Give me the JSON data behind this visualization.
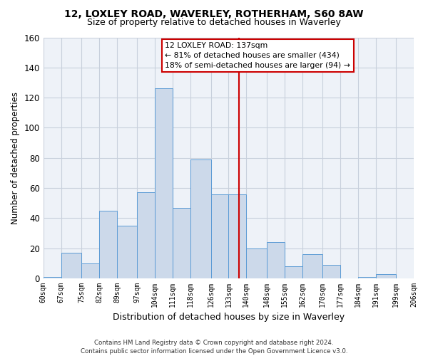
{
  "title_line1": "12, LOXLEY ROAD, WAVERLEY, ROTHERHAM, S60 8AW",
  "title_line2": "Size of property relative to detached houses in Waverley",
  "xlabel": "Distribution of detached houses by size in Waverley",
  "ylabel": "Number of detached properties",
  "footer_line1": "Contains HM Land Registry data © Crown copyright and database right 2024.",
  "footer_line2": "Contains public sector information licensed under the Open Government Licence v3.0.",
  "annotation_title": "12 LOXLEY ROAD: 137sqm",
  "annotation_line1": "← 81% of detached houses are smaller (434)",
  "annotation_line2": "18% of semi-detached houses are larger (94) →",
  "property_size": 137,
  "bin_edges": [
    60,
    67,
    75,
    82,
    89,
    97,
    104,
    111,
    118,
    126,
    133,
    140,
    148,
    155,
    162,
    170,
    177,
    184,
    191,
    199,
    206
  ],
  "bar_heights": [
    1,
    17,
    10,
    45,
    35,
    57,
    126,
    47,
    79,
    56,
    56,
    20,
    24,
    8,
    16,
    9,
    0,
    1,
    3,
    0
  ],
  "bar_color": "#ccd9ea",
  "bar_edge_color": "#5b9bd5",
  "vline_color": "#cc0000",
  "vline_x": 137,
  "ylim": [
    0,
    160
  ],
  "yticks": [
    0,
    20,
    40,
    60,
    80,
    100,
    120,
    140,
    160
  ],
  "x_labels": [
    "60sqm",
    "67sqm",
    "75sqm",
    "82sqm",
    "89sqm",
    "97sqm",
    "104sqm",
    "111sqm",
    "118sqm",
    "126sqm",
    "133sqm",
    "140sqm",
    "148sqm",
    "155sqm",
    "162sqm",
    "170sqm",
    "177sqm",
    "184sqm",
    "191sqm",
    "199sqm",
    "206sqm"
  ],
  "grid_color": "#c8d0dc",
  "background_color": "#eef2f8"
}
